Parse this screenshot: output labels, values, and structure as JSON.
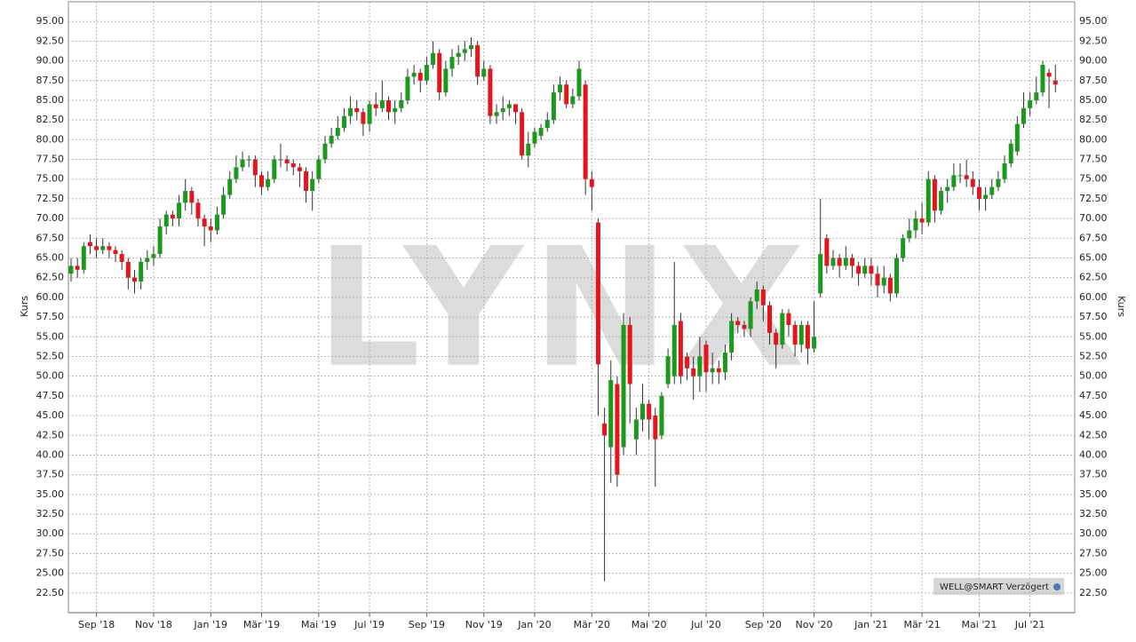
{
  "chart_data": {
    "type": "candlestick",
    "axis_label": "Kurs",
    "watermark": "LYNX",
    "badge": "WELL@SMART Verzögert",
    "up_color": "#1a9a1a",
    "down_color": "#e8141b",
    "grid": true,
    "ylim": [
      20,
      97.5
    ],
    "yticks": [
      {
        "value": 22.5,
        "label": "22.50"
      },
      {
        "value": 25,
        "label": "25.00"
      },
      {
        "value": 27.5,
        "label": "27.50"
      },
      {
        "value": 30,
        "label": "30.00"
      },
      {
        "value": 32.5,
        "label": "32.50"
      },
      {
        "value": 35,
        "label": "35.00"
      },
      {
        "value": 37.5,
        "label": "37.50"
      },
      {
        "value": 40,
        "label": "40.00"
      },
      {
        "value": 42.5,
        "label": "42.50"
      },
      {
        "value": 45,
        "label": "45.00"
      },
      {
        "value": 47.5,
        "label": "47.50"
      },
      {
        "value": 50,
        "label": "50.00"
      },
      {
        "value": 52.5,
        "label": "52.50"
      },
      {
        "value": 55,
        "label": "55.00"
      },
      {
        "value": 57.5,
        "label": "57.50"
      },
      {
        "value": 60,
        "label": "60.00"
      },
      {
        "value": 62.5,
        "label": "62.50"
      },
      {
        "value": 65,
        "label": "65.00"
      },
      {
        "value": 67.5,
        "label": "67.50"
      },
      {
        "value": 70,
        "label": "70.00"
      },
      {
        "value": 72.5,
        "label": "72.50"
      },
      {
        "value": 75,
        "label": "75.00"
      },
      {
        "value": 77.5,
        "label": "77.50"
      },
      {
        "value": 80,
        "label": "80.00"
      },
      {
        "value": 82.5,
        "label": "82.50"
      },
      {
        "value": 85,
        "label": "85.00"
      },
      {
        "value": 87.5,
        "label": "87.50"
      },
      {
        "value": 90,
        "label": "90.00"
      },
      {
        "value": 92.5,
        "label": "92.50"
      },
      {
        "value": 95,
        "label": "95.00"
      }
    ],
    "categories": [
      null,
      null,
      null,
      null,
      "Sep '18",
      null,
      null,
      null,
      null,
      null,
      null,
      null,
      null,
      "Nov '18",
      null,
      null,
      null,
      null,
      null,
      null,
      null,
      null,
      "Jan '19",
      null,
      null,
      null,
      null,
      null,
      null,
      null,
      "Mär '19",
      null,
      null,
      null,
      null,
      null,
      null,
      null,
      null,
      "Mai '19",
      null,
      null,
      null,
      null,
      null,
      null,
      null,
      "Jul '19",
      null,
      null,
      null,
      null,
      null,
      null,
      null,
      null,
      "Sep '19",
      null,
      null,
      null,
      null,
      null,
      null,
      null,
      null,
      "Nov '19",
      null,
      null,
      null,
      null,
      null,
      null,
      null,
      "Jan '20",
      null,
      null,
      null,
      null,
      null,
      null,
      null,
      null,
      "Mär '20",
      null,
      null,
      null,
      null,
      null,
      null,
      null,
      null,
      "Mai '20",
      null,
      null,
      null,
      null,
      null,
      null,
      null,
      null,
      "Jul '20",
      null,
      null,
      null,
      null,
      null,
      null,
      null,
      null,
      "Sep '20",
      null,
      null,
      null,
      null,
      null,
      null,
      null,
      "Nov '20",
      null,
      null,
      null,
      null,
      null,
      null,
      null,
      null,
      "Jan '21",
      null,
      null,
      null,
      null,
      null,
      null,
      null,
      "Mär '21",
      null,
      null,
      null,
      null,
      null,
      null,
      null,
      null,
      "Mai '21",
      null,
      null,
      null,
      null,
      null,
      null,
      null,
      "Jul '21",
      null,
      null,
      null,
      null
    ],
    "open": [
      63,
      64,
      63.5,
      67,
      66.5,
      66,
      66.5,
      66,
      65.5,
      64.5,
      62.5,
      62,
      64.5,
      65,
      65.5,
      69,
      70.5,
      70,
      72,
      73.5,
      72,
      70,
      69,
      68.5,
      70.5,
      73,
      75,
      76.5,
      77.5,
      77.5,
      75.5,
      74,
      75,
      77.5,
      77.5,
      77,
      76.5,
      76,
      73.5,
      75,
      77.5,
      79.5,
      80.5,
      81.5,
      83,
      84,
      83.5,
      82,
      84.5,
      84,
      85,
      83.5,
      84,
      85,
      88,
      88.5,
      87.5,
      89.5,
      91,
      86,
      89,
      90.5,
      91,
      91.5,
      92,
      88,
      89,
      83,
      83.5,
      84,
      84.5,
      83.5,
      78,
      79.5,
      80.5,
      81.5,
      82.5,
      86,
      87,
      84.5,
      85.5,
      87,
      75,
      69.5,
      44,
      41,
      49,
      41,
      56.5,
      42,
      44.5,
      46.5,
      45,
      42.5,
      49,
      50,
      57,
      52.5,
      51,
      50,
      54,
      50.5,
      51,
      50.5,
      53,
      57,
      56.5,
      56,
      59.5,
      61,
      59,
      55.5,
      54,
      58,
      56.5,
      54,
      56.5,
      53.5,
      60.5,
      67.5,
      64,
      65,
      64,
      65,
      64,
      63,
      64,
      63,
      61.5,
      62.5,
      60.5,
      65,
      67.5,
      68.5,
      70,
      69.5,
      75,
      71,
      73.5,
      74,
      75.5,
      75.5,
      75,
      74,
      72.5,
      73,
      74,
      75,
      77,
      78.5,
      82,
      84,
      85,
      86,
      88.5,
      87.5
    ],
    "high": [
      65,
      65,
      67,
      68,
      67.5,
      67.5,
      67,
      66.5,
      66,
      65,
      63.5,
      65,
      66,
      66.5,
      70,
      71,
      71,
      73,
      75,
      74,
      72.5,
      70.5,
      70,
      71.5,
      74,
      76,
      78,
      78.5,
      78,
      78,
      76,
      76,
      78,
      79.5,
      78,
      77.5,
      77,
      76.5,
      76,
      78,
      80.5,
      81.5,
      83,
      84,
      85.5,
      85,
      84,
      85,
      86,
      87.5,
      85.5,
      85,
      86,
      89,
      89.5,
      89,
      90.5,
      92.5,
      91.5,
      90,
      91.5,
      92,
      92.5,
      93,
      92.5,
      90,
      89.5,
      84.5,
      85.5,
      85,
      84.5,
      84,
      81,
      81.5,
      82,
      83.5,
      87,
      88,
      87.5,
      86.5,
      90,
      87.5,
      76,
      70,
      46,
      52,
      50,
      58,
      57.5,
      46,
      49,
      47,
      46,
      48,
      53.5,
      64.5,
      58,
      53,
      52.5,
      55,
      54.5,
      53,
      52,
      54,
      58,
      57.5,
      57,
      60,
      62,
      61.5,
      59.5,
      56,
      58.5,
      58.5,
      57,
      57,
      57,
      59.5,
      72.5,
      68,
      66,
      65.5,
      66.5,
      65.5,
      64.5,
      65,
      65,
      64,
      64,
      63,
      65.5,
      68,
      70,
      71,
      72,
      76,
      75.5,
      74,
      75,
      77,
      77,
      77.5,
      76,
      75,
      74,
      75,
      76,
      78,
      80,
      83,
      86,
      86,
      88,
      90,
      89,
      89.5
    ],
    "low": [
      62,
      62.5,
      63,
      65.5,
      65,
      65.5,
      65,
      64.5,
      63.5,
      61,
      60.5,
      61,
      63.5,
      64,
      65,
      68,
      69,
      69,
      71,
      70.5,
      69,
      66.5,
      67,
      68,
      70,
      72.5,
      74.5,
      76,
      76.5,
      74,
      73,
      73.5,
      74.5,
      76.5,
      76,
      75.5,
      74,
      72,
      71,
      74.5,
      77,
      79,
      80,
      81,
      82,
      82.5,
      80.5,
      81,
      83,
      83.5,
      82.5,
      82,
      83.5,
      84.5,
      87,
      86,
      87,
      89,
      85,
      85.5,
      88,
      89.5,
      90,
      90.5,
      87,
      87.5,
      82,
      82,
      82.5,
      83,
      82,
      77.5,
      76.5,
      79,
      80,
      81,
      82,
      85,
      84,
      84,
      85,
      73,
      71,
      45,
      24,
      36.5,
      36,
      40,
      44,
      40,
      43,
      42,
      36,
      42,
      48.5,
      49,
      49,
      49.5,
      47,
      48,
      48,
      49,
      49,
      49.5,
      52,
      55.5,
      55,
      55,
      58.5,
      57,
      54,
      51,
      53.5,
      55,
      52.5,
      53,
      51.5,
      53,
      60,
      63,
      63.5,
      62.5,
      63.5,
      62.5,
      61.5,
      62.5,
      61.5,
      60,
      60.5,
      59.5,
      60,
      64.5,
      67,
      67.5,
      68,
      69,
      69.5,
      70.5,
      72,
      73.5,
      74.5,
      74,
      73,
      71,
      71,
      72.5,
      73.5,
      74.5,
      76.5,
      78,
      81.5,
      83,
      84.5,
      85.5,
      84,
      86
    ],
    "close": [
      64,
      63.5,
      66.5,
      66.5,
      66,
      66.5,
      66,
      65.5,
      64.5,
      62.5,
      62,
      64.5,
      65,
      65.5,
      69,
      70.5,
      70,
      72,
      73.5,
      72,
      70,
      69,
      68.5,
      70.5,
      73,
      75,
      76.5,
      77.5,
      77.5,
      75.5,
      74,
      75,
      77.5,
      77.5,
      77,
      76.5,
      76,
      73.5,
      75,
      77.5,
      79.5,
      80.5,
      81.5,
      83,
      84,
      83.5,
      82,
      84.5,
      84,
      85,
      83.5,
      84,
      85,
      88,
      88.5,
      87.5,
      89.5,
      91,
      86,
      89,
      90.5,
      91,
      91.5,
      92,
      88,
      89,
      83,
      83.5,
      84,
      84.5,
      83.5,
      78,
      79.5,
      81,
      81.5,
      82.5,
      86,
      87,
      84.5,
      85.5,
      89,
      75,
      74,
      51.5,
      42.5,
      49.5,
      37.5,
      56.5,
      49,
      44.5,
      46.5,
      44.5,
      42,
      47.5,
      52.5,
      56.5,
      50,
      51,
      50,
      52.5,
      50.5,
      51,
      50.5,
      53,
      57,
      56.5,
      56,
      59.5,
      61,
      59,
      55.5,
      54,
      58,
      56.5,
      54,
      56.5,
      53.5,
      55,
      65.5,
      64,
      65,
      64,
      65,
      64,
      63,
      64,
      63,
      61.5,
      62.5,
      60.5,
      65,
      67.5,
      68.5,
      70,
      69.5,
      75,
      71,
      73.5,
      74,
      75.5,
      75.5,
      75,
      74,
      72.5,
      73,
      74,
      75,
      77,
      79.5,
      82,
      84,
      85,
      86,
      89.5,
      88,
      87
    ]
  }
}
